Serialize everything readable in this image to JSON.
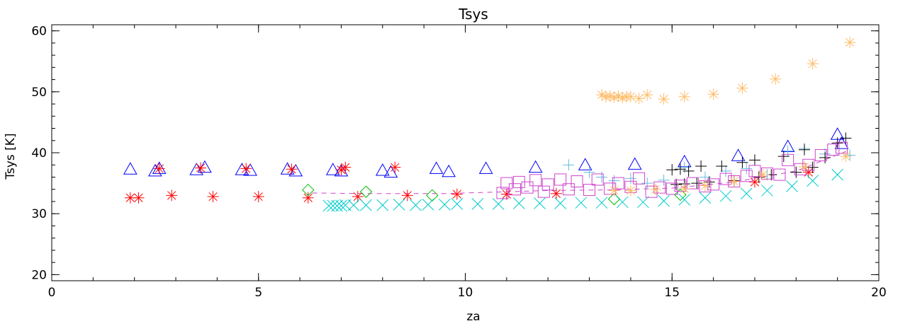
{
  "chart_data": {
    "type": "scatter",
    "title": "Tsys",
    "xlabel": "za",
    "ylabel": "Tsys [K]",
    "xlim": [
      0,
      20
    ],
    "ylim": [
      19,
      61
    ],
    "xticks": [
      0,
      5,
      10,
      15,
      20
    ],
    "yticks": [
      20,
      30,
      40,
      50,
      60
    ],
    "x_minor_step": 1,
    "y_minor_step": 2,
    "grid": false,
    "series": [
      {
        "marker": "triangle",
        "color": "#0000ff",
        "x": [
          1.9,
          2.5,
          2.6,
          3.5,
          3.7,
          4.6,
          4.8,
          5.7,
          5.9,
          6.8,
          7.0,
          8.0,
          8.2,
          9.3,
          9.6,
          10.5,
          11.7,
          12.9,
          14.1,
          15.3,
          16.6,
          17.8,
          19.0,
          19.1
        ],
        "y": [
          37.3,
          37.0,
          37.4,
          37.2,
          37.6,
          37.2,
          37.1,
          37.3,
          37.0,
          37.2,
          37.0,
          37.1,
          36.8,
          37.4,
          36.9,
          37.4,
          37.6,
          38.0,
          38.1,
          38.5,
          39.5,
          41.0,
          43.0,
          41.5
        ]
      },
      {
        "marker": "asterisk",
        "color": "#ff0000",
        "x": [
          1.9,
          2.1,
          2.6,
          2.9,
          3.6,
          3.9,
          4.7,
          5.0,
          5.8,
          6.2,
          7.0,
          7.1,
          7.4,
          8.3,
          8.6,
          9.8,
          11.0,
          12.2,
          17.0,
          18.3
        ],
        "y": [
          32.6,
          32.6,
          37.4,
          33.0,
          37.5,
          32.8,
          37.4,
          32.8,
          37.3,
          32.6,
          37.2,
          37.6,
          32.8,
          37.6,
          33.0,
          33.2,
          33.2,
          33.3,
          35.2,
          36.8
        ]
      },
      {
        "marker": "diamond",
        "color": "#00bb00",
        "x": [
          6.2,
          7.6,
          9.2,
          13.6,
          15.2
        ],
        "y": [
          33.9,
          33.6,
          33.0,
          32.4,
          33.1
        ]
      },
      {
        "marker": "cross",
        "color": "#00cccc",
        "x": [
          6.7,
          6.8,
          6.9,
          7.0,
          7.1,
          7.3,
          7.6,
          8.0,
          8.4,
          8.8,
          9.1,
          9.5,
          9.8,
          10.3,
          10.8,
          11.3,
          11.8,
          12.3,
          12.8,
          13.3,
          13.8,
          14.3,
          14.8,
          15.3,
          15.8,
          16.3,
          16.8,
          17.3,
          17.9,
          18.4,
          19.0
        ],
        "y": [
          31.3,
          31.3,
          31.3,
          31.3,
          31.4,
          31.4,
          31.4,
          31.4,
          31.5,
          31.4,
          31.5,
          31.5,
          31.6,
          31.6,
          31.6,
          31.7,
          31.7,
          31.7,
          31.8,
          31.8,
          31.9,
          31.9,
          32.1,
          32.3,
          32.6,
          32.9,
          33.3,
          33.8,
          34.5,
          35.4,
          36.4
        ]
      },
      {
        "marker": "plus",
        "color": "#66bbdd",
        "x": [
          12.5,
          13.0,
          13.3,
          13.6,
          14.0,
          14.4,
          14.8,
          15.3,
          15.8,
          16.3,
          16.8,
          17.3,
          17.8,
          18.2,
          18.7,
          19.3
        ],
        "y": [
          38.0,
          36.8,
          36.0,
          35.4,
          35.8,
          35.0,
          35.5,
          37.6,
          36.0,
          37.0,
          37.4,
          36.4,
          40.3,
          40.7,
          39.8,
          39.6
        ]
      },
      {
        "marker": "plus",
        "color": "#000000",
        "x": [
          15.0,
          15.1,
          15.2,
          15.3,
          15.4,
          15.6,
          15.7,
          15.9,
          16.2,
          16.5,
          16.7,
          17.0,
          17.1,
          17.4,
          17.7,
          18.0,
          18.2,
          18.4,
          18.7,
          19.0,
          19.2
        ],
        "y": [
          37.2,
          34.8,
          37.3,
          34.9,
          37.0,
          35.0,
          37.8,
          35.2,
          37.8,
          35.4,
          38.4,
          38.8,
          36.0,
          36.4,
          39.4,
          36.8,
          40.5,
          37.6,
          39.2,
          41.6,
          42.4
        ]
      },
      {
        "marker": "square",
        "color": "#cc44cc",
        "x": [
          10.9,
          11.0,
          11.2,
          11.3,
          11.5,
          11.7,
          11.9,
          12.0,
          12.3,
          12.5,
          12.7,
          13.0,
          13.2,
          13.5,
          13.7,
          14.0,
          14.2,
          14.5,
          14.7,
          15.0,
          15.2,
          15.5,
          15.8,
          16.0,
          16.3,
          16.5,
          16.8,
          17.0,
          17.3,
          17.6,
          17.8,
          18.1,
          18.3,
          18.6,
          18.9,
          19.1
        ],
        "y": [
          33.4,
          35.0,
          34.0,
          35.2,
          34.3,
          35.5,
          33.6,
          34.8,
          35.6,
          34.0,
          35.3,
          33.9,
          35.6,
          34.1,
          35.0,
          34.4,
          35.8,
          33.6,
          34.3,
          34.1,
          34.6,
          35.0,
          34.5,
          34.8,
          35.7,
          35.3,
          36.2,
          37.0,
          36.6,
          36.4,
          38.8,
          37.3,
          38.0,
          39.6,
          40.5,
          40.8
        ]
      },
      {
        "marker": "asterisk",
        "color": "#ffbb66",
        "x": [
          13.3,
          13.4,
          13.5,
          13.6,
          13.7,
          13.8,
          13.9,
          14.0,
          14.2,
          14.4,
          14.8,
          15.3,
          16.0,
          16.7,
          17.5,
          18.4,
          19.3
        ],
        "y": [
          49.5,
          49.2,
          49.3,
          49.1,
          49.3,
          49.0,
          49.2,
          49.2,
          48.9,
          49.5,
          48.8,
          49.2,
          49.6,
          50.6,
          52.1,
          54.6,
          58.1
        ]
      },
      {
        "marker": "asterisk",
        "color": "#ffbb66",
        "x": [
          13.6,
          14.0,
          14.6,
          15.3,
          15.8,
          16.5,
          17.2,
          18.2,
          19.2
        ],
        "y": [
          33.8,
          33.8,
          34.0,
          34.1,
          34.6,
          35.3,
          36.4,
          37.7,
          39.4
        ]
      }
    ],
    "lines": [
      {
        "style": "dashed",
        "color": "#cc44cc",
        "x": [
          6.3,
          7.5,
          8.5,
          9.5,
          10.5,
          11.0,
          12.0,
          13.5,
          15.0,
          16.5,
          18.0,
          19.2
        ],
        "y": [
          33.4,
          33.3,
          33.3,
          33.3,
          33.5,
          33.6,
          33.8,
          33.9,
          34.2,
          35.2,
          37.0,
          40.2
        ]
      }
    ]
  }
}
